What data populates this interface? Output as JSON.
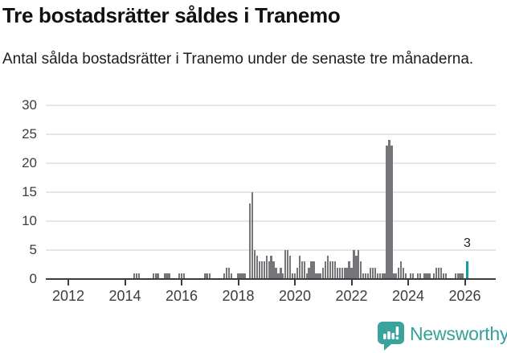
{
  "header": {
    "title": "Tre bostadsrätter såldes i Tranemo",
    "subtitle": "Antal sålda bostadsrätter i Tranemo under de senaste tre månaderna."
  },
  "chart_data": {
    "type": "bar",
    "title": "Tre bostadsrätter såldes i Tranemo",
    "subtitle": "Antal sålda bostadsrätter i Tranemo under de senaste tre månaderna.",
    "xlabel": "",
    "ylabel": "",
    "ylim": [
      0,
      30
    ],
    "y_ticks": [
      0,
      5,
      10,
      15,
      20,
      25,
      30
    ],
    "x_ticks": [
      2012,
      2014,
      2016,
      2018,
      2020,
      2022,
      2024,
      2026
    ],
    "grid": true,
    "legend": false,
    "frequency": "monthly",
    "start_month": "2012-01",
    "monthly_values_by_year": {
      "2012": [
        0,
        0,
        0,
        0,
        0,
        0,
        0,
        0,
        0,
        0,
        0,
        0
      ],
      "2013": [
        0,
        0,
        0,
        0,
        0,
        0,
        0,
        0,
        0,
        0,
        0,
        0
      ],
      "2014": [
        0,
        0,
        0,
        0,
        1,
        1,
        1,
        0,
        0,
        0,
        0,
        0
      ],
      "2015": [
        1,
        1,
        1,
        0,
        0,
        1,
        1,
        1,
        0,
        0,
        0,
        1
      ],
      "2016": [
        1,
        1,
        0,
        0,
        0,
        0,
        0,
        0,
        0,
        0,
        1,
        1
      ],
      "2017": [
        1,
        0,
        0,
        0,
        0,
        0,
        1,
        2,
        2,
        1,
        0,
        0
      ],
      "2018": [
        1,
        1,
        1,
        1,
        0,
        13,
        15,
        5,
        4,
        3,
        3,
        3
      ],
      "2019": [
        4,
        3,
        4,
        3,
        2,
        1,
        2,
        1,
        5,
        5,
        4,
        1
      ],
      "2020": [
        1,
        2,
        4,
        3,
        3,
        1,
        2,
        3,
        3,
        1,
        1,
        1
      ],
      "2021": [
        2,
        3,
        4,
        3,
        3,
        3,
        2,
        2,
        2,
        2,
        2,
        3
      ],
      "2022": [
        2,
        5,
        4,
        5,
        3,
        1,
        1,
        1,
        2,
        2,
        2,
        1
      ],
      "2023": [
        1,
        1,
        1,
        23,
        24,
        23,
        1,
        1,
        2,
        3,
        2,
        1
      ],
      "2024": [
        0,
        1,
        1,
        0,
        1,
        1,
        0,
        1,
        1,
        1,
        0,
        1
      ],
      "2025": [
        2,
        2,
        2,
        1,
        1,
        0,
        0,
        0,
        1,
        1,
        1,
        1
      ],
      "2026": [
        0,
        3
      ]
    },
    "highlight_month": "2026-02",
    "last_value": 3,
    "annotation": {
      "label": "3",
      "month": "2026-02"
    },
    "bar_color": "#75757a",
    "highlight_color": "#10a09c"
  },
  "footer": {
    "brand": "Newsworthy",
    "logo_icon": "newsworthy-chart-bubble-icon",
    "brand_color": "#35a09b",
    "icon_color": "#3aa39e"
  }
}
